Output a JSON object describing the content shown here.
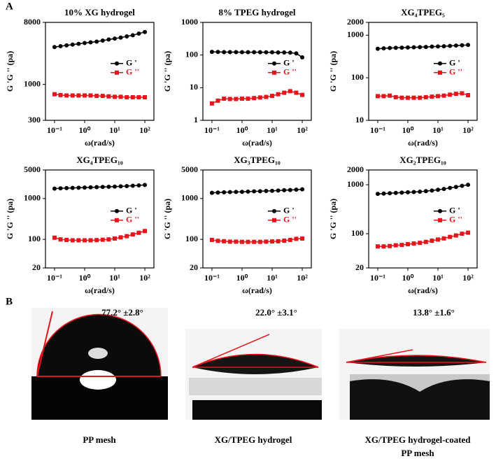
{
  "chart_data": [
    {
      "type": "line",
      "title": "10% XG hydrogel",
      "x_label": "ω(rad/s)",
      "y_label": "G 'G '' (pa)",
      "log_x": true,
      "log_y": true,
      "legend": "right",
      "x": [
        0.1,
        0.158,
        0.251,
        0.398,
        0.631,
        1,
        1.58,
        2.51,
        3.98,
        6.31,
        10,
        15.8,
        25.1,
        39.8,
        63.1,
        100
      ],
      "xlim": [
        0.05,
        200
      ],
      "xticks": [
        {
          "value": 0.1,
          "label": "10⁻¹"
        },
        {
          "value": 1,
          "label": "10⁰"
        },
        {
          "value": 10,
          "label": "10¹"
        },
        {
          "value": 100,
          "label": "10²"
        }
      ],
      "ylim": [
        300,
        8000
      ],
      "yticks": [
        300,
        1000,
        8000
      ],
      "series": [
        {
          "name": "G '",
          "color": "#000000",
          "values": [
            3500,
            3600,
            3700,
            3800,
            3900,
            4000,
            4100,
            4200,
            4350,
            4500,
            4650,
            4800,
            5000,
            5200,
            5500,
            5800
          ]
        },
        {
          "name": "G ''",
          "color": "#e8141b",
          "values": [
            720,
            700,
            690,
            690,
            690,
            690,
            690,
            680,
            680,
            670,
            660,
            660,
            650,
            650,
            650,
            650
          ]
        }
      ]
    },
    {
      "type": "line",
      "title": "8% TPEG hydrogel",
      "x_label": "ω(rad/s)",
      "y_label": "G 'G '' (pa)",
      "log_x": true,
      "log_y": true,
      "legend": "right",
      "x": [
        0.1,
        0.158,
        0.251,
        0.398,
        0.631,
        1,
        1.58,
        2.51,
        3.98,
        6.31,
        10,
        15.8,
        25.1,
        39.8,
        63.1,
        100
      ],
      "xlim": [
        0.05,
        200
      ],
      "xticks": [
        {
          "value": 0.1,
          "label": "10⁻¹"
        },
        {
          "value": 1,
          "label": "10⁰"
        },
        {
          "value": 10,
          "label": "10¹"
        },
        {
          "value": 100,
          "label": "10²"
        }
      ],
      "ylim": [
        1,
        1000
      ],
      "yticks": [
        1,
        10,
        100,
        1000
      ],
      "series": [
        {
          "name": "G '",
          "color": "#000000",
          "values": [
            125,
            124,
            123,
            123,
            123,
            122,
            122,
            122,
            122,
            121,
            121,
            120,
            120,
            118,
            112,
            85
          ]
        },
        {
          "name": "G ''",
          "color": "#e8141b",
          "values": [
            3.3,
            4.0,
            4.6,
            4.5,
            4.5,
            4.6,
            4.6,
            4.8,
            5.0,
            5.2,
            5.6,
            6.3,
            7.0,
            7.8,
            7.0,
            6.0
          ]
        }
      ]
    },
    {
      "type": "line",
      "title": "XG₄TPEG₅",
      "x_label": "ω(rad/s)",
      "y_label": "G 'G '' (pa)",
      "log_x": true,
      "log_y": true,
      "legend": "right",
      "x": [
        0.1,
        0.158,
        0.251,
        0.398,
        0.631,
        1,
        1.58,
        2.51,
        3.98,
        6.31,
        10,
        15.8,
        25.1,
        39.8,
        63.1,
        100
      ],
      "xlim": [
        0.05,
        200
      ],
      "xticks": [
        {
          "value": 0.1,
          "label": "10⁻¹"
        },
        {
          "value": 1,
          "label": "10⁰"
        },
        {
          "value": 10,
          "label": "10¹"
        },
        {
          "value": 100,
          "label": "10²"
        }
      ],
      "ylim": [
        10,
        2000
      ],
      "yticks": [
        10,
        100,
        1000,
        2000
      ],
      "series": [
        {
          "name": "G '",
          "color": "#000000",
          "values": [
            480,
            490,
            500,
            505,
            510,
            515,
            520,
            525,
            530,
            540,
            545,
            550,
            560,
            570,
            580,
            590
          ]
        },
        {
          "name": "G ''",
          "color": "#e8141b",
          "values": [
            37,
            37,
            38,
            35,
            34,
            34,
            34,
            34,
            35,
            36,
            37,
            38,
            40,
            42,
            43,
            39
          ]
        }
      ]
    },
    {
      "type": "line",
      "title": "XG₄TPEG₁₀",
      "x_label": "ω(rad/s)",
      "y_label": "G 'G '' (pa)",
      "log_x": true,
      "log_y": true,
      "legend": "right",
      "x": [
        0.1,
        0.158,
        0.251,
        0.398,
        0.631,
        1,
        1.58,
        2.51,
        3.98,
        6.31,
        10,
        15.8,
        25.1,
        39.8,
        63.1,
        100
      ],
      "xlim": [
        0.05,
        200
      ],
      "xticks": [
        {
          "value": 0.1,
          "label": "10⁻¹"
        },
        {
          "value": 1,
          "label": "10⁰"
        },
        {
          "value": 10,
          "label": "10¹"
        },
        {
          "value": 100,
          "label": "10²"
        }
      ],
      "ylim": [
        20,
        5000
      ],
      "yticks": [
        20,
        100,
        1000,
        5000
      ],
      "series": [
        {
          "name": "G '",
          "color": "#000000",
          "values": [
            1750,
            1780,
            1800,
            1820,
            1840,
            1860,
            1880,
            1900,
            1920,
            1940,
            1960,
            1990,
            2020,
            2060,
            2100,
            2150
          ]
        },
        {
          "name": "G ''",
          "color": "#e8141b",
          "values": [
            110,
            100,
            97,
            95,
            95,
            95,
            95,
            96,
            98,
            100,
            105,
            112,
            120,
            132,
            145,
            160
          ]
        }
      ]
    },
    {
      "type": "line",
      "title": "XG₃TPEG₁₀",
      "x_label": "ω(rad/s)",
      "y_label": "G 'G '' (pa)",
      "log_x": true,
      "log_y": true,
      "legend": "right",
      "x": [
        0.1,
        0.158,
        0.251,
        0.398,
        0.631,
        1,
        1.58,
        2.51,
        3.98,
        6.31,
        10,
        15.8,
        25.1,
        39.8,
        63.1,
        100
      ],
      "xlim": [
        0.05,
        200
      ],
      "xticks": [
        {
          "value": 0.1,
          "label": "10⁻¹"
        },
        {
          "value": 1,
          "label": "10⁰"
        },
        {
          "value": 10,
          "label": "10¹"
        },
        {
          "value": 100,
          "label": "10²"
        }
      ],
      "ylim": [
        20,
        5000
      ],
      "yticks": [
        20,
        100,
        1000,
        5000
      ],
      "series": [
        {
          "name": "G '",
          "color": "#000000",
          "values": [
            1380,
            1400,
            1420,
            1440,
            1450,
            1460,
            1480,
            1500,
            1510,
            1530,
            1550,
            1570,
            1600,
            1620,
            1650,
            1680
          ]
        },
        {
          "name": "G ''",
          "color": "#e8141b",
          "values": [
            97,
            92,
            90,
            88,
            88,
            87,
            87,
            87,
            87,
            88,
            89,
            90,
            93,
            97,
            103,
            105
          ]
        }
      ]
    },
    {
      "type": "line",
      "title": "XG₂TPEG₁₀",
      "x_label": "ω(rad/s)",
      "y_label": "G 'G '' (pa)",
      "log_x": true,
      "log_y": true,
      "legend": "right",
      "x": [
        0.1,
        0.158,
        0.251,
        0.398,
        0.631,
        1,
        1.58,
        2.51,
        3.98,
        6.31,
        10,
        15.8,
        25.1,
        39.8,
        63.1,
        100
      ],
      "xlim": [
        0.05,
        200
      ],
      "xticks": [
        {
          "value": 0.1,
          "label": "10⁻¹"
        },
        {
          "value": 1,
          "label": "10⁰"
        },
        {
          "value": 10,
          "label": "10¹"
        },
        {
          "value": 100,
          "label": "10²"
        }
      ],
      "ylim": [
        20,
        2000
      ],
      "yticks": [
        20,
        100,
        1000,
        2000
      ],
      "series": [
        {
          "name": "G '",
          "color": "#000000",
          "values": [
            650,
            660,
            670,
            680,
            690,
            700,
            710,
            720,
            740,
            760,
            790,
            820,
            860,
            900,
            950,
            1000
          ]
        },
        {
          "name": "G ''",
          "color": "#e8141b",
          "values": [
            55,
            55,
            56,
            58,
            59,
            61,
            63,
            65,
            68,
            72,
            76,
            80,
            86,
            92,
            100,
            105
          ]
        }
      ]
    }
  ],
  "panel_a": {
    "label": "A"
  },
  "panel_b": {
    "label": "B",
    "angles": [
      "77.2°  ±2.8°",
      "22.0°  ±3.1°",
      "13.8°  ±1.6°"
    ],
    "captions": [
      [
        "PP mesh"
      ],
      [
        "XG/TPEG hydrogel"
      ],
      [
        "XG/TPEG hydrogel-coated",
        "PP mesh"
      ]
    ]
  }
}
